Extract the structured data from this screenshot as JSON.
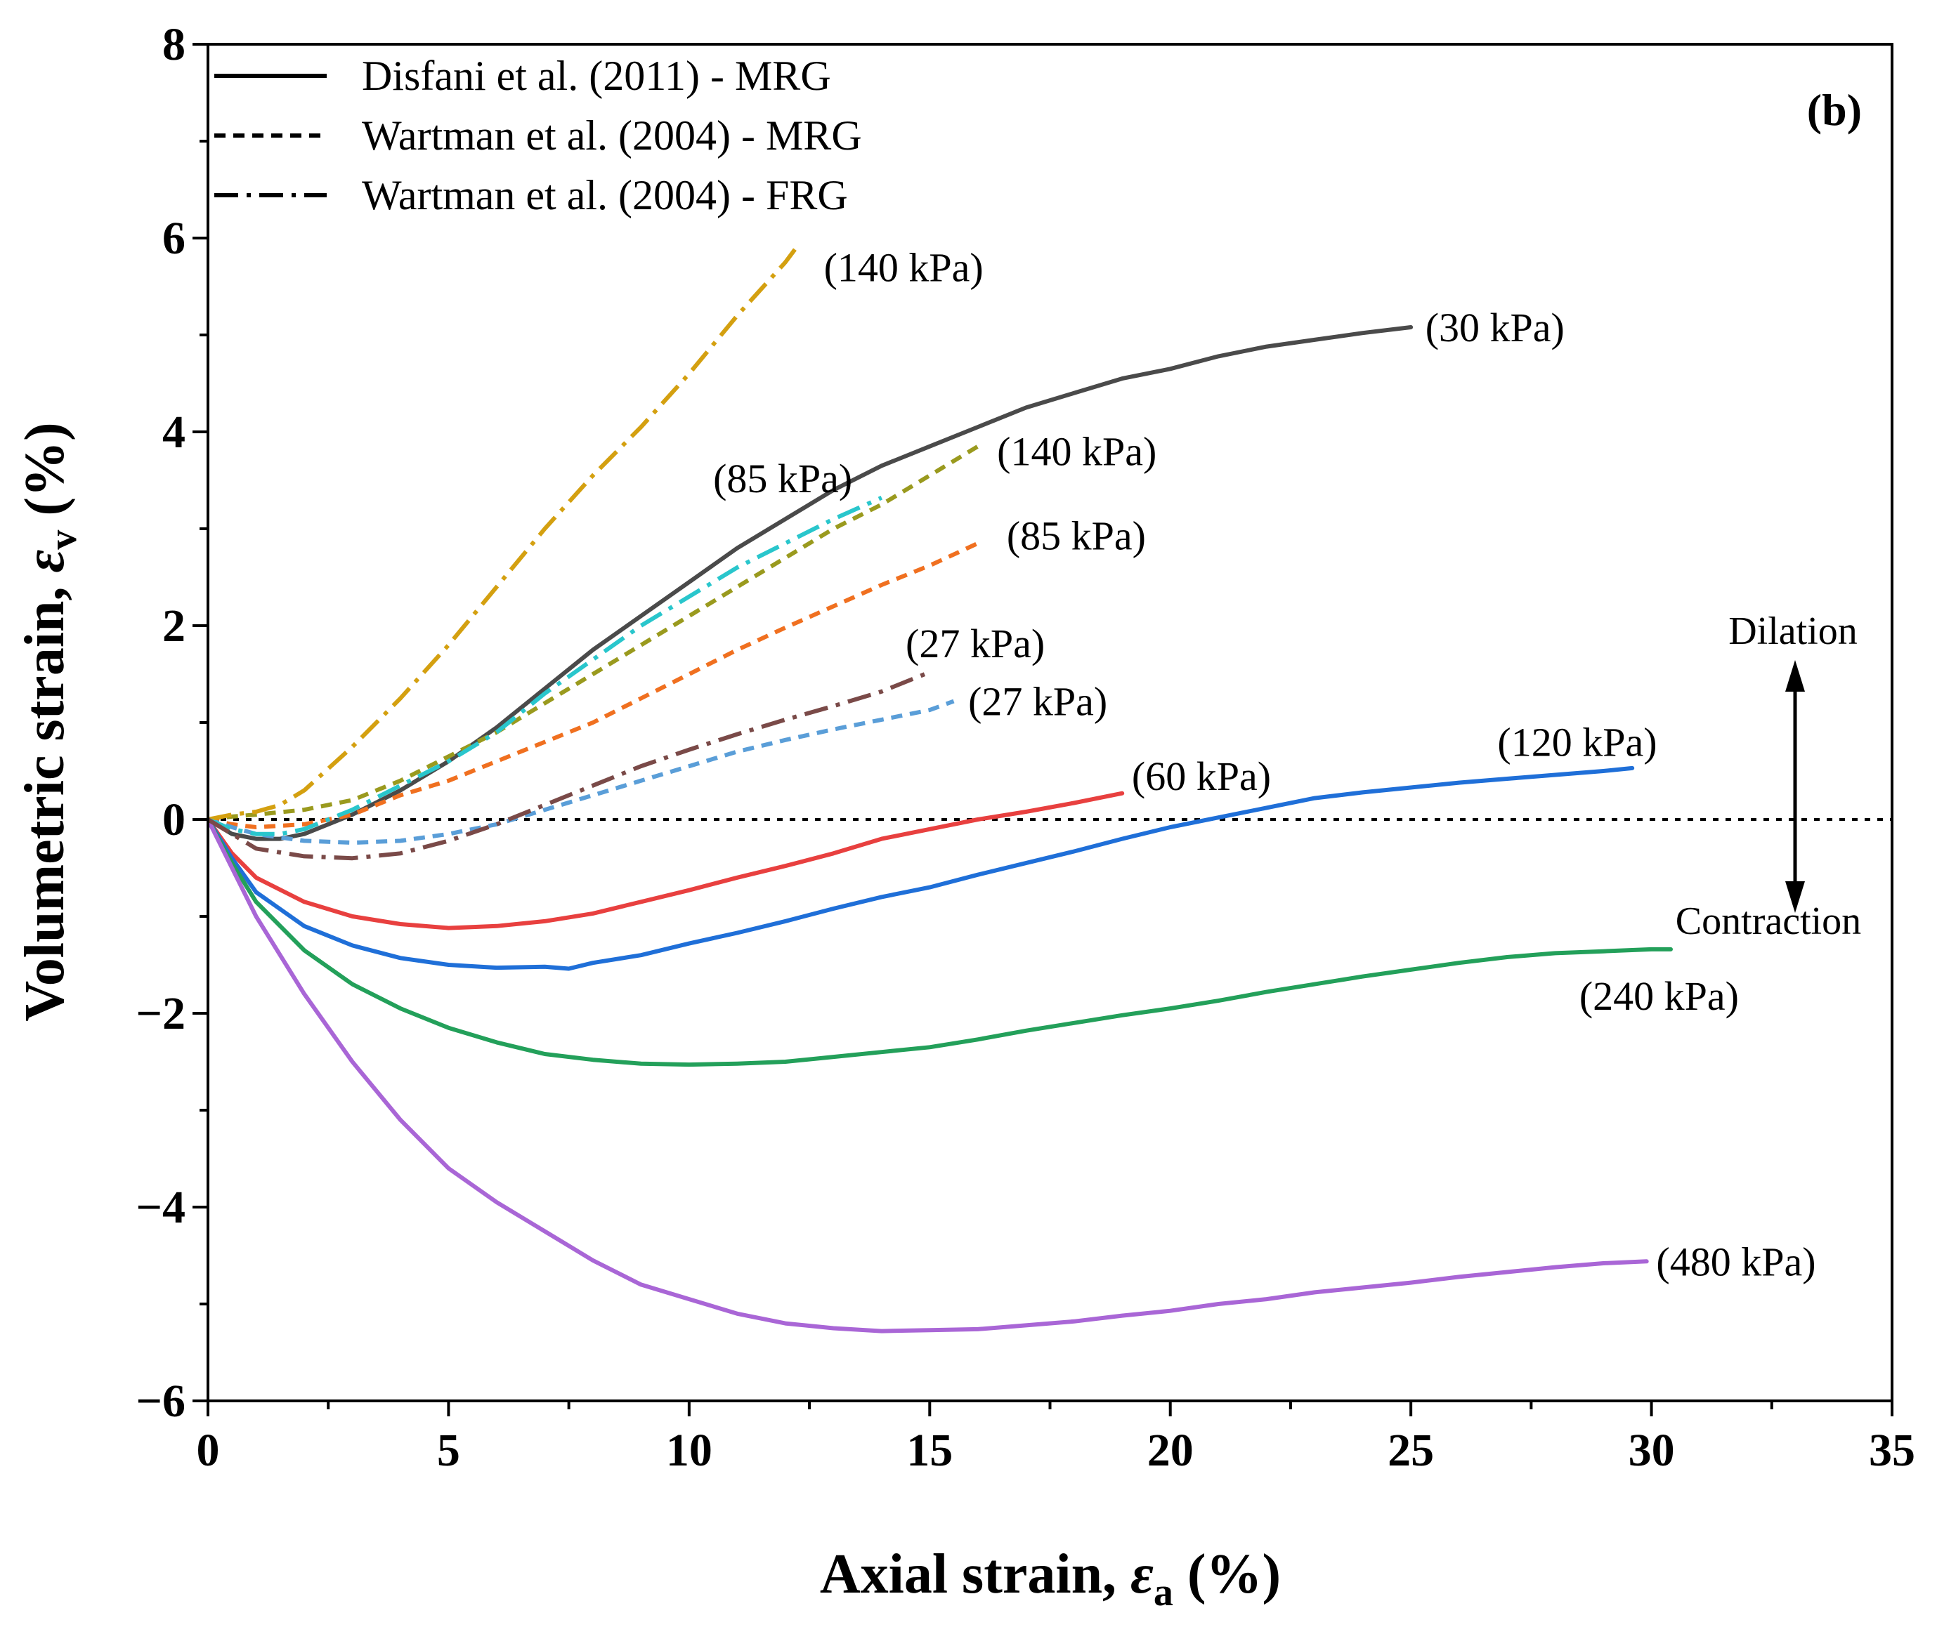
{
  "chart_data": {
    "type": "line",
    "panel_label": "(b)",
    "xlabel": {
      "prefix": "Axial strain, ",
      "symbol": "ε",
      "sub": "a",
      "suffix": " (%)"
    },
    "ylabel": {
      "prefix": "Volumetric strain, ",
      "symbol": "ε",
      "sub": "v",
      "suffix": " (%)"
    },
    "xlim": [
      0,
      35
    ],
    "ylim": [
      -6,
      8
    ],
    "xticks": [
      0,
      5,
      10,
      15,
      20,
      25,
      30,
      35
    ],
    "xtick_labels": [
      "0",
      "5",
      "10",
      "15",
      "20",
      "25",
      "30",
      "35"
    ],
    "yticks": [
      -6,
      -4,
      -2,
      0,
      2,
      4,
      6,
      8
    ],
    "ytick_labels": [
      "−6",
      "−4",
      "−2",
      "0",
      "2",
      "4",
      "6",
      "8"
    ],
    "x_minor_step": 2.5,
    "y_minor_step": 1,
    "grid": false,
    "legend": {
      "position": "top-left",
      "entries": [
        {
          "label": "Disfani et al. (2011) - MRG",
          "style": "solid"
        },
        {
          "label": "Wartman et al. (2004) - MRG",
          "style": "dashed"
        },
        {
          "label": "Wartman et al. (2004) - FRG",
          "style": "dashdot"
        }
      ]
    },
    "annotations": {
      "dilation": "Dilation",
      "contraction": "Contraction"
    },
    "series": [
      {
        "name": "(30 kPa)",
        "source": "Disfani et al. (2011) - MRG",
        "style": "solid",
        "color": "#4a4a4a",
        "x": [
          0,
          0.5,
          1,
          1.5,
          2,
          3,
          4,
          5,
          6,
          7,
          8,
          9,
          10,
          11,
          12,
          13,
          14,
          15,
          16,
          17,
          18,
          19,
          20,
          21,
          22,
          23,
          24,
          25
        ],
        "y": [
          0,
          -0.15,
          -0.2,
          -0.2,
          -0.15,
          0.05,
          0.3,
          0.6,
          0.95,
          1.35,
          1.75,
          2.1,
          2.45,
          2.8,
          3.1,
          3.4,
          3.65,
          3.85,
          4.05,
          4.25,
          4.4,
          4.55,
          4.65,
          4.78,
          4.88,
          4.95,
          5.02,
          5.08
        ],
        "label_at": [
          25.3,
          5.08
        ],
        "label_anchor": "start"
      },
      {
        "name": "(60 kPa)",
        "source": "Disfani et al. (2011) - MRG",
        "style": "solid",
        "color": "#e8403f",
        "x": [
          0,
          0.5,
          1,
          2,
          3,
          4,
          5,
          6,
          7,
          8,
          9,
          10,
          11,
          12,
          13,
          14,
          15,
          16,
          17,
          18,
          19
        ],
        "y": [
          0,
          -0.35,
          -0.6,
          -0.85,
          -1.0,
          -1.08,
          -1.12,
          -1.1,
          -1.05,
          -0.97,
          -0.85,
          -0.73,
          -0.6,
          -0.48,
          -0.35,
          -0.2,
          -0.1,
          0.0,
          0.08,
          0.17,
          0.27
        ],
        "label_at": [
          19.2,
          0.45
        ],
        "label_anchor": "start"
      },
      {
        "name": "(120 kPa)",
        "source": "Disfani et al. (2011) - MRG",
        "style": "solid",
        "color": "#1f6fd8",
        "x": [
          0,
          0.5,
          1,
          2,
          3,
          4,
          5,
          6,
          7,
          7.5,
          8,
          9,
          10,
          11,
          12,
          13,
          14,
          15,
          16,
          17,
          18,
          19,
          20,
          21,
          22,
          23,
          24,
          25,
          26,
          27,
          28,
          29,
          29.6
        ],
        "y": [
          0,
          -0.4,
          -0.75,
          -1.1,
          -1.3,
          -1.43,
          -1.5,
          -1.53,
          -1.52,
          -1.54,
          -1.48,
          -1.4,
          -1.28,
          -1.17,
          -1.05,
          -0.92,
          -0.8,
          -0.7,
          -0.57,
          -0.45,
          -0.33,
          -0.2,
          -0.08,
          0.02,
          0.12,
          0.22,
          0.28,
          0.33,
          0.38,
          0.42,
          0.46,
          0.5,
          0.53
        ],
        "label_at": [
          26.8,
          0.8
        ],
        "label_anchor": "start"
      },
      {
        "name": "(240 kPa)",
        "source": "Disfani et al. (2011) - MRG",
        "style": "solid",
        "color": "#23a05a",
        "x": [
          0,
          0.5,
          1,
          2,
          3,
          4,
          5,
          6,
          7,
          8,
          9,
          10,
          11,
          12,
          13,
          14,
          15,
          16,
          17,
          18,
          19,
          20,
          21,
          22,
          23,
          24,
          25,
          26,
          27,
          28,
          29,
          30,
          30.4
        ],
        "y": [
          0,
          -0.45,
          -0.85,
          -1.35,
          -1.7,
          -1.95,
          -2.15,
          -2.3,
          -2.42,
          -2.48,
          -2.52,
          -2.53,
          -2.52,
          -2.5,
          -2.45,
          -2.4,
          -2.35,
          -2.27,
          -2.18,
          -2.1,
          -2.02,
          -1.95,
          -1.87,
          -1.78,
          -1.7,
          -1.62,
          -1.55,
          -1.48,
          -1.42,
          -1.38,
          -1.36,
          -1.34,
          -1.34
        ],
        "label_at": [
          28.5,
          -1.82
        ],
        "label_anchor": "start"
      },
      {
        "name": "(480 kPa)",
        "source": "Disfani et al. (2011) - MRG",
        "style": "solid",
        "color": "#a966d6",
        "x": [
          0,
          0.5,
          1,
          2,
          3,
          4,
          5,
          6,
          7,
          8,
          9,
          10,
          11,
          12,
          13,
          14,
          15,
          16,
          17,
          18,
          19,
          20,
          21,
          22,
          23,
          24,
          25,
          26,
          27,
          28,
          29,
          29.9
        ],
        "y": [
          0,
          -0.5,
          -1.0,
          -1.8,
          -2.5,
          -3.1,
          -3.6,
          -3.95,
          -4.25,
          -4.55,
          -4.8,
          -4.95,
          -5.1,
          -5.2,
          -5.25,
          -5.28,
          -5.27,
          -5.26,
          -5.22,
          -5.18,
          -5.12,
          -5.07,
          -5.0,
          -4.95,
          -4.88,
          -4.83,
          -4.78,
          -4.72,
          -4.67,
          -4.62,
          -4.58,
          -4.56
        ],
        "label_at": [
          30.1,
          -4.56
        ],
        "label_anchor": "start"
      },
      {
        "name": "(140 kPa)",
        "source": "Wartman et al. (2004) - MRG",
        "style": "dashed",
        "color": "#9a9a1e",
        "x": [
          0,
          0.5,
          1,
          2,
          3,
          4,
          5,
          6,
          7,
          8,
          9,
          10,
          11,
          12,
          13,
          14,
          15,
          16
        ],
        "y": [
          0,
          0.03,
          0.05,
          0.1,
          0.2,
          0.4,
          0.65,
          0.9,
          1.2,
          1.5,
          1.8,
          2.1,
          2.4,
          2.7,
          3.0,
          3.25,
          3.55,
          3.85
        ],
        "label_at": [
          16.4,
          3.8
        ],
        "label_anchor": "start"
      },
      {
        "name": "(85 kPa)",
        "source": "Wartman et al. (2004) - MRG",
        "style": "dashed",
        "color": "#f07020",
        "x": [
          0,
          0.5,
          1,
          2,
          3,
          4,
          5,
          6,
          7,
          8,
          9,
          10,
          11,
          12,
          13,
          14,
          15,
          16
        ],
        "y": [
          0,
          -0.05,
          -0.08,
          -0.05,
          0.05,
          0.25,
          0.4,
          0.6,
          0.8,
          1.0,
          1.25,
          1.5,
          1.75,
          1.98,
          2.2,
          2.42,
          2.62,
          2.85
        ],
        "label_at": [
          16.6,
          2.93
        ],
        "label_anchor": "start"
      },
      {
        "name": "(27 kPa)",
        "source": "Wartman et al. (2004) - MRG",
        "style": "dashed",
        "color": "#5a9ed8",
        "x": [
          0,
          0.5,
          1,
          2,
          3,
          4,
          5,
          6,
          7,
          8,
          9,
          10,
          11,
          12,
          13,
          14,
          15,
          15.5
        ],
        "y": [
          0,
          -0.08,
          -0.15,
          -0.22,
          -0.24,
          -0.22,
          -0.15,
          -0.05,
          0.1,
          0.25,
          0.4,
          0.55,
          0.7,
          0.82,
          0.93,
          1.03,
          1.13,
          1.22
        ],
        "label_at": [
          15.8,
          1.22
        ],
        "label_anchor": "start"
      },
      {
        "name": "(140 kPa)",
        "source": "Wartman et al. (2004) - FRG",
        "style": "dashdot",
        "color": "#d4a010",
        "x": [
          0,
          0.5,
          1,
          1.5,
          2,
          3,
          4,
          5,
          6,
          7,
          8,
          9,
          10,
          11,
          12,
          12.3
        ],
        "y": [
          0,
          0.05,
          0.08,
          0.15,
          0.3,
          0.75,
          1.25,
          1.8,
          2.4,
          3.0,
          3.55,
          4.05,
          4.6,
          5.2,
          5.75,
          5.95
        ],
        "label_at": [
          12.8,
          5.7
        ],
        "label_anchor": "start"
      },
      {
        "name": "(85 kPa)",
        "source": "Wartman et al. (2004) - FRG",
        "style": "dashdot",
        "color": "#29c6cc",
        "x": [
          0,
          0.5,
          1,
          1.5,
          2,
          3,
          4,
          5,
          6,
          7,
          8,
          9,
          10,
          11,
          12,
          13,
          14
        ],
        "y": [
          0,
          -0.1,
          -0.15,
          -0.15,
          -0.1,
          0.1,
          0.35,
          0.6,
          0.9,
          1.3,
          1.65,
          2.0,
          2.3,
          2.6,
          2.85,
          3.1,
          3.32
        ],
        "label_at": [
          10.5,
          3.52
        ],
        "label_anchor": "start"
      },
      {
        "name": "(27 kPa)",
        "source": "Wartman et al. (2004) - FRG",
        "style": "dashdot",
        "color": "#7a4a48",
        "x": [
          0,
          0.5,
          1,
          2,
          3,
          4,
          5,
          6,
          7,
          8,
          9,
          10,
          11,
          12,
          13,
          14,
          15
        ],
        "y": [
          0,
          -0.15,
          -0.3,
          -0.38,
          -0.4,
          -0.35,
          -0.22,
          -0.05,
          0.15,
          0.35,
          0.55,
          0.72,
          0.88,
          1.03,
          1.17,
          1.32,
          1.52
        ],
        "label_at": [
          14.5,
          1.82
        ],
        "label_anchor": "start"
      }
    ]
  }
}
